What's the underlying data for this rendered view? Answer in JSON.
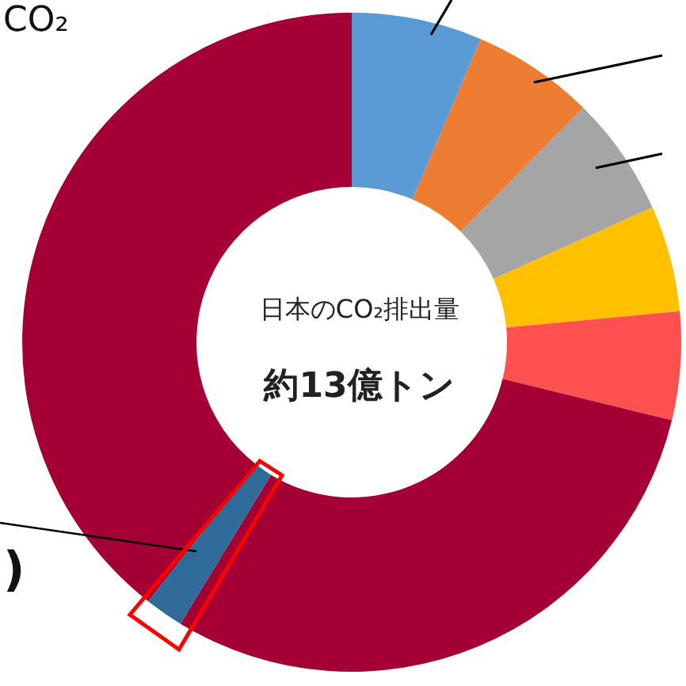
{
  "chart_data": {
    "type": "donut",
    "title": "日本のCO₂排出量",
    "subtitle": "約13億トン",
    "categories": [
      null,
      null,
      null,
      null,
      null,
      null,
      null,
      null
    ],
    "values": [
      6.4,
      6.0,
      5.9,
      5.2,
      5.3,
      29.9,
      1.9,
      39.4
    ],
    "colors": [
      "#5b9bd5",
      "#ed7d31",
      "#a5a5a5",
      "#ffc000",
      "#ff5050",
      "#a50034",
      "#2e6b99",
      "#a50034"
    ],
    "annotations": [
      "CO₂",
      ")"
    ]
  }
}
